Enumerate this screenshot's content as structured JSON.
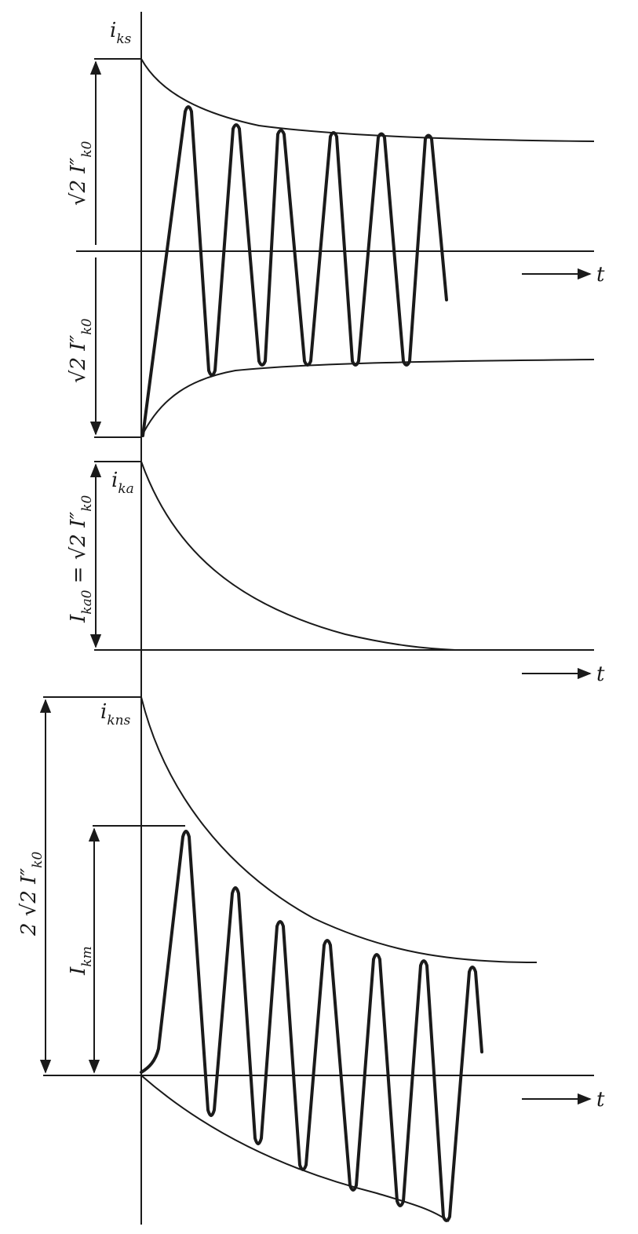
{
  "panels": [
    {
      "id": "symmetric",
      "signal_label": "i",
      "signal_sub": "ks",
      "amplitude_label_top": "√2 I″",
      "amplitude_label_top_sub": "k0",
      "amplitude_label_bottom": "√2 I″",
      "amplitude_label_bottom_sub": "k0",
      "time_label": "t"
    },
    {
      "id": "aperiodic",
      "signal_label": "i",
      "signal_sub": "ka",
      "amplitude_label": "I",
      "amplitude_label_sub": "ka0",
      "amplitude_label_rest": " = √2 I″",
      "amplitude_label_rest_sub": "k0",
      "time_label": "t"
    },
    {
      "id": "asymmetric",
      "signal_label": "i",
      "signal_sub": "kns",
      "outer_label": "2 √2 I″",
      "outer_label_sub": "k0",
      "peak_label": "I",
      "peak_label_sub": "km",
      "time_label": "t"
    }
  ],
  "colors": {
    "ink": "#1a1a1a",
    "paper": "#ffffff"
  }
}
